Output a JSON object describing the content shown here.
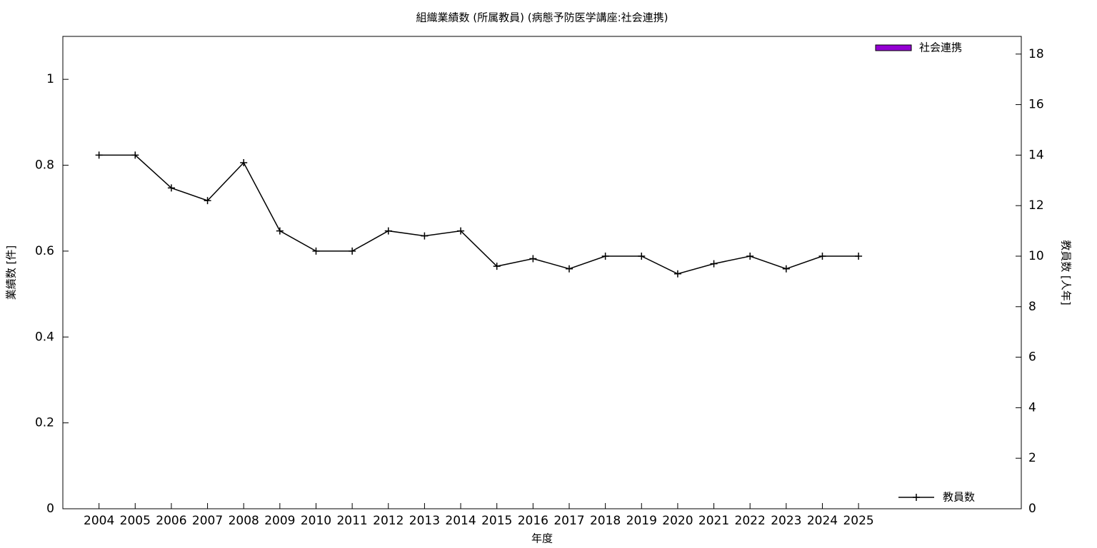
{
  "chart_data": {
    "type": "bar_line",
    "title": "組織業績数 (所属教員) (病態予防医学講座:社会連携)",
    "x_label": "年度",
    "y_label": "業績数 [件]",
    "y2_label": "教員数 [人年]",
    "x": [
      2004,
      2005,
      2006,
      2007,
      2008,
      2009,
      2010,
      2011,
      2012,
      2013,
      2014,
      2015,
      2016,
      2017,
      2018,
      2019,
      2020,
      2021,
      2022,
      2023,
      2024,
      2025
    ],
    "xlim": [
      2003,
      2029.5
    ],
    "xticks": [
      2004,
      2005,
      2006,
      2007,
      2008,
      2009,
      2010,
      2011,
      2012,
      2013,
      2014,
      2015,
      2016,
      2017,
      2018,
      2019,
      2020,
      2021,
      2022,
      2023,
      2024,
      2025
    ],
    "ylim": [
      0,
      1.1
    ],
    "yticks": [
      0,
      0.2,
      0.4,
      0.6,
      0.8,
      1
    ],
    "y2lim": [
      0,
      18.7
    ],
    "y2ticks": [
      0,
      2,
      4,
      6,
      8,
      10,
      12,
      14,
      16,
      18
    ],
    "series": [
      {
        "name": "社会連携",
        "type": "bar",
        "color": "#9400d3",
        "legend": "top right",
        "values": [
          0,
          0,
          0,
          0,
          0,
          0,
          0,
          0,
          0,
          0,
          0,
          0,
          0,
          0,
          0,
          0,
          0,
          0,
          0,
          0,
          0,
          0
        ]
      },
      {
        "name": "教員数",
        "type": "line",
        "axis": "y2",
        "color": "#000000",
        "legend": "bottom right",
        "values": [
          14,
          14,
          12.7,
          12.2,
          13.7,
          11,
          10.2,
          10.2,
          11,
          10.8,
          11,
          9.6,
          9.9,
          9.5,
          10,
          10,
          9.3,
          9.7,
          10,
          9.5,
          10,
          10
        ]
      }
    ]
  }
}
